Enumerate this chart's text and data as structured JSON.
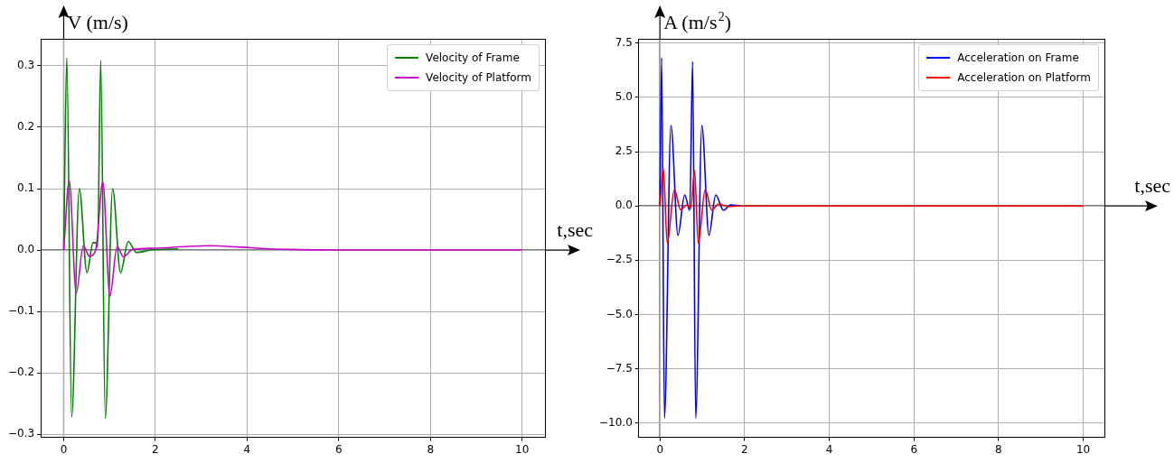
{
  "chart_data": [
    {
      "type": "line",
      "xlabel": "t,sec",
      "ylabel": "V (m/s)",
      "xlim": [
        -0.5,
        10.5
      ],
      "ylim": [
        -0.305,
        0.344
      ],
      "xticks": [
        0,
        2,
        4,
        6,
        8,
        10
      ],
      "yticks": [
        {
          "value": -0.3,
          "label": "−0.3"
        },
        {
          "value": -0.2,
          "label": "−0.2"
        },
        {
          "value": -0.1,
          "label": "−0.1"
        },
        {
          "value": 0,
          "label": "0.0"
        },
        0.1,
        0.2,
        0.3
      ],
      "grid": true,
      "legend": "top right",
      "series": [
        {
          "name": "Velocity of Frame",
          "color": "#008000",
          "x": [
            0,
            0.067,
            0.173,
            0.34,
            0.507,
            0.64,
            0.7,
            0.74,
            0.807,
            0.907,
            1.067,
            1.24,
            1.407,
            1.587,
            1.9,
            2.5
          ],
          "values": [
            0,
            0.313,
            -0.272,
            0.1,
            -0.037,
            0.012,
            0.012,
            0.005,
            0.309,
            -0.274,
            0.1,
            -0.037,
            0.014,
            -0.004,
            0,
            0.002
          ]
        },
        {
          "name": "Velocity of Platform",
          "color": "#cc00cc",
          "x": [
            0,
            0.12,
            0.273,
            0.427,
            0.56,
            0.7,
            0.853,
            1.007,
            1.167,
            1.3,
            1.5,
            2,
            2.7,
            3.2,
            3.8,
            4.5,
            5,
            6,
            8,
            10
          ],
          "values": [
            0,
            0.113,
            -0.07,
            0.007,
            -0.01,
            0.001,
            0.111,
            -0.075,
            0.006,
            -0.011,
            0.001,
            0.003,
            0.006,
            0.007,
            0.005,
            0.002,
            0.001,
            0,
            0,
            0
          ]
        }
      ]
    },
    {
      "type": "line",
      "xlabel": "t,sec",
      "ylabel": "A (m/s$^{2}$)",
      "xlim": [
        -0.5,
        10.5
      ],
      "ylim": [
        -10.66,
        7.7
      ],
      "xticks": [
        0,
        2,
        4,
        6,
        8,
        10
      ],
      "yticks": [
        {
          "value": -10,
          "label": "−10.0"
        },
        {
          "value": -7.5,
          "label": "−7.5"
        },
        {
          "value": -5,
          "label": "−5.0"
        },
        {
          "value": -2.5,
          "label": "−2.5"
        },
        {
          "value": 0,
          "label": "0.0"
        },
        2.5,
        {
          "value": 5,
          "label": "5.0"
        },
        7.5
      ],
      "grid": true,
      "legend": "top right",
      "series": [
        {
          "name": "Acceleration on Frame",
          "color": "#0000ff",
          "x": [
            0,
            0.04,
            0.107,
            0.26,
            0.426,
            0.585,
            0.705,
            0.772,
            0.845,
            0.99,
            1.158,
            1.317,
            1.503,
            1.67,
            1.9
          ],
          "values": [
            0,
            6.83,
            -9.78,
            3.71,
            -1.35,
            0.51,
            -0.2,
            6.65,
            -9.78,
            3.71,
            -1.35,
            0.51,
            -0.2,
            0.05,
            0
          ]
        },
        {
          "name": "Acceleration on Platform",
          "color": "#ff0000",
          "x": [
            0,
            0.08,
            0.173,
            0.34,
            0.49,
            0.64,
            0.73,
            0.818,
            0.905,
            1.07,
            1.22,
            1.4,
            1.6,
            1.9,
            4,
            6,
            8,
            10
          ],
          "values": [
            0,
            1.75,
            -1.72,
            0.76,
            -0.18,
            0.05,
            -0.1,
            1.64,
            -1.72,
            0.76,
            -0.18,
            0.1,
            -0.03,
            0,
            0,
            0,
            0,
            0
          ]
        }
      ]
    }
  ]
}
